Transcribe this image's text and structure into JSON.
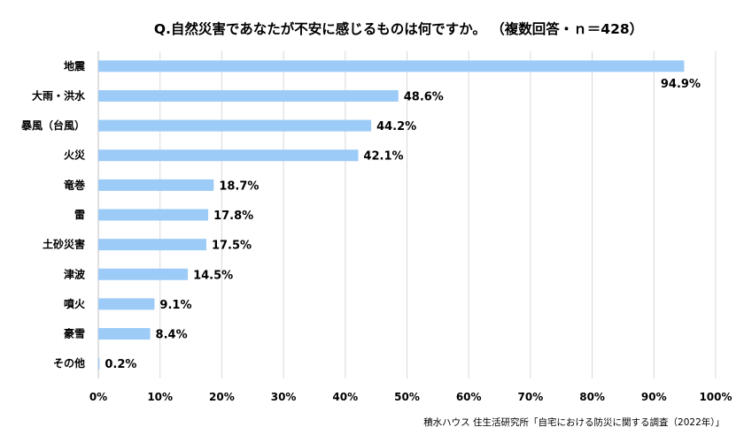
{
  "chart_data": {
    "type": "bar",
    "orientation": "horizontal",
    "title": "Q.自然災害であなたが不安に感じるものは何ですか。 （複数回答・ｎ＝428）",
    "categories": [
      "地震",
      "大雨・洪水",
      "暴風（台風）",
      "火災",
      "竜巻",
      "雷",
      "土砂災害",
      "津波",
      "噴火",
      "豪雪",
      "その他"
    ],
    "values": [
      94.9,
      48.6,
      44.2,
      42.1,
      18.7,
      17.8,
      17.5,
      14.5,
      9.1,
      8.4,
      0.2
    ],
    "value_labels": [
      "94.9%",
      "48.6%",
      "44.2%",
      "42.1%",
      "18.7%",
      "17.8%",
      "17.5%",
      "14.5%",
      "9.1%",
      "8.4%",
      "0.2%"
    ],
    "xlim": [
      0,
      100
    ],
    "x_ticks": [
      "0%",
      "10%",
      "20%",
      "30%",
      "40%",
      "50%",
      "60%",
      "70%",
      "80%",
      "90%",
      "100%"
    ],
    "grid": true,
    "bar_color": "#9dcbf7",
    "grid_color": "#d9d9d9",
    "axis_color": "#bfbfbf",
    "source": "積水ハウス 住生活研究所「自宅における防災に関する調査（2022年）」"
  }
}
